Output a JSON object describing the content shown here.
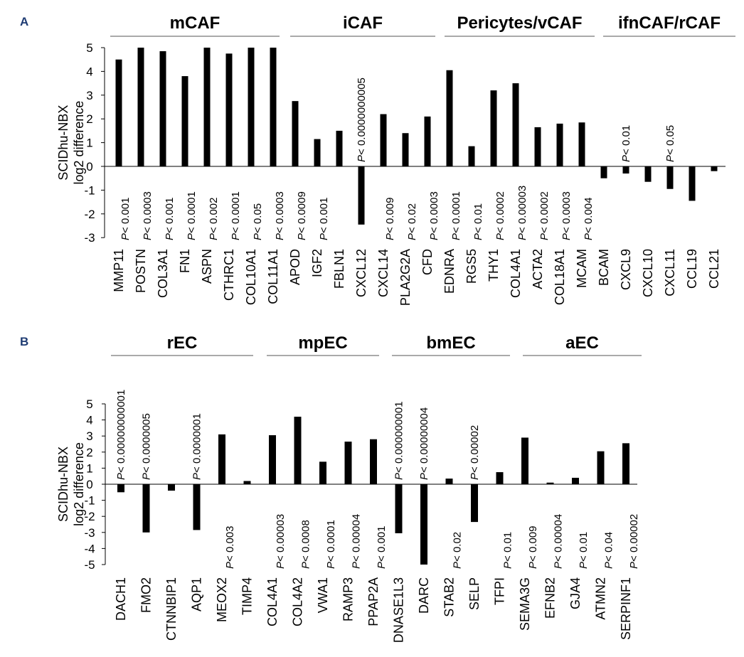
{
  "chart_data": [
    {
      "panel": "A",
      "type": "bar",
      "ylabel": [
        "SCIDhu-NBX",
        "log2 difference"
      ],
      "ylim": [
        -3,
        5
      ],
      "yticks": [
        5,
        4,
        3,
        2,
        1,
        0,
        -1,
        -2,
        -3
      ],
      "groups": [
        {
          "name": "mCAF"
        },
        {
          "name": "iCAF"
        },
        {
          "name": "Pericytes/vCAF"
        },
        {
          "name": "ifnCAF/rCAF"
        }
      ],
      "categories": [
        "MMP11",
        "POSTN",
        "COL3A1",
        "FN1",
        "ASPN",
        "CTHRC1",
        "COL10A1",
        "COL11A1",
        "APOD",
        "IGF2",
        "FBLN1",
        "CXCL12",
        "CXCL14",
        "PLA2G2A",
        "CFD",
        "EDNRA",
        "RGS5",
        "THY1",
        "COL4A1",
        "ACTA2",
        "COL18A1",
        "MCAM",
        "BCAM",
        "CXCL9",
        "CXCL10",
        "CXCL11",
        "CCL19",
        "CCL21"
      ],
      "values": [
        4.5,
        5.0,
        4.85,
        3.8,
        5.0,
        4.75,
        5.0,
        5.0,
        2.75,
        1.15,
        1.5,
        -2.45,
        2.2,
        1.4,
        2.1,
        4.05,
        0.85,
        3.2,
        3.5,
        1.65,
        1.8,
        1.85,
        -0.5,
        -0.3,
        -0.65,
        -0.95,
        -1.45,
        -0.2
      ],
      "pvalues": [
        "< 0.001",
        "< 0.0003",
        "< 0.001",
        "< 0.0001",
        "< 0.002",
        "< 0.0001",
        "< 0.05",
        "< 0.0003",
        "< 0.0009",
        "< 0.001",
        "",
        "< 0.0000000005",
        "< 0.009",
        "< 0.02",
        "< 0.0003",
        "< 0.0001",
        "< 0.01",
        "< 0.0002",
        "< 0.00003",
        "< 0.0002",
        "< 0.0003",
        "< 0.004",
        "",
        "< 0.01",
        "",
        "< 0.05",
        "",
        ""
      ]
    },
    {
      "panel": "B",
      "type": "bar",
      "ylabel": [
        "SCIDhu-NBX",
        "log2 difference"
      ],
      "ylim": [
        -5,
        5
      ],
      "yticks": [
        5,
        4,
        3,
        2,
        1,
        0,
        -1,
        -2,
        -3,
        -4,
        -5
      ],
      "groups": [
        {
          "name": "rEC"
        },
        {
          "name": "mpEC"
        },
        {
          "name": "bmEC"
        },
        {
          "name": "aEC"
        }
      ],
      "categories": [
        "DACH1",
        "FMO2",
        "CTNNBIP1",
        "AQP1",
        "MEOX2",
        "TIMP4",
        "COL4A1",
        "COL4A2",
        "VWA1",
        "RAMP3",
        "PPAP2A",
        "DNASE1L3",
        "DARC",
        "STAB2",
        "SELP",
        "TFPI",
        "SEMA3G",
        "EFNB2",
        "GJA4",
        "ATMN2",
        "SERPINF1"
      ],
      "values": [
        -0.5,
        -3.0,
        -0.4,
        -2.85,
        3.1,
        0.2,
        3.05,
        4.2,
        1.4,
        2.65,
        2.8,
        -3.05,
        -5.0,
        0.35,
        -2.35,
        0.75,
        2.9,
        0.1,
        0.4,
        2.05,
        2.55
      ],
      "pvalues": [
        "< 0.00000000001",
        "< 0.0000005",
        "",
        "< 0.0000001",
        "< 0.003",
        "",
        "< 0.00003",
        "< 0.0008",
        "< 0.0001",
        "< 0.00004",
        "< 0.001",
        "< 0.000000001",
        "< 0.00000004",
        "< 0.02",
        "< 0.00002",
        "< 0.01",
        "< 0.009",
        "< 0.00004",
        "< 0.01",
        "< 0.04",
        "< 0.00002"
      ]
    }
  ],
  "panels": {
    "a_letter": "A",
    "b_letter": "B",
    "p_symbol": "P"
  }
}
